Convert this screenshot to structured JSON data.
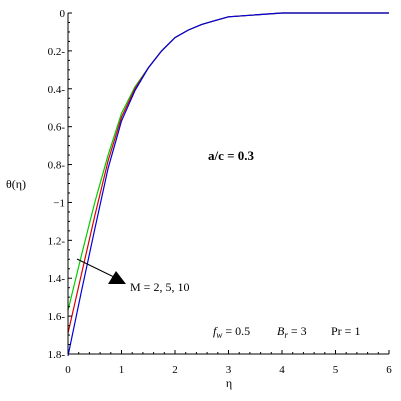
{
  "chart_data": {
    "type": "line",
    "title": "",
    "xlabel": "η",
    "ylabel": "θ(η)",
    "xlim": [
      0,
      6
    ],
    "ylim": [
      0,
      1.8
    ],
    "y_inverted": true,
    "x_ticks": [
      "0",
      "1",
      "2",
      "3",
      "4",
      "5",
      "6"
    ],
    "y_ticks": [
      "0",
      "0.2",
      "0.4",
      "0.6",
      "0.8",
      "1",
      "1.2",
      "1.4",
      "1.6",
      "1.8"
    ],
    "y_tick_display": [
      "0",
      "0.2-",
      "0.4-",
      "0.6-",
      "0.8-",
      "−1",
      "1.2-",
      "1.4-",
      "1.6-",
      "1.8-"
    ],
    "grid": false,
    "series": [
      {
        "color": "#00cc00",
        "points": [
          [
            0,
            1.57
          ],
          [
            0.25,
            1.28
          ],
          [
            0.5,
            1.0
          ],
          [
            0.75,
            0.75
          ],
          [
            1,
            0.53
          ],
          [
            1.25,
            0.39
          ],
          [
            1.5,
            0.29
          ],
          [
            1.75,
            0.2
          ],
          [
            2,
            0.13
          ],
          [
            2.25,
            0.09
          ],
          [
            2.5,
            0.06
          ],
          [
            2.75,
            0.04
          ],
          [
            3,
            0.02
          ],
          [
            3.5,
            0.01
          ],
          [
            4,
            0.0
          ],
          [
            6,
            0.0
          ]
        ]
      },
      {
        "color": "#dd0000",
        "points": [
          [
            0,
            1.69
          ],
          [
            0.25,
            1.38
          ],
          [
            0.5,
            1.07
          ],
          [
            0.75,
            0.78
          ],
          [
            1,
            0.55
          ],
          [
            1.25,
            0.4
          ],
          [
            1.5,
            0.29
          ],
          [
            1.75,
            0.2
          ],
          [
            2,
            0.13
          ],
          [
            2.25,
            0.09
          ],
          [
            2.5,
            0.06
          ],
          [
            2.75,
            0.04
          ],
          [
            3,
            0.02
          ],
          [
            3.5,
            0.01
          ],
          [
            4,
            0.0
          ],
          [
            6,
            0.0
          ]
        ]
      },
      {
        "color": "#0000dd",
        "points": [
          [
            0,
            1.81
          ],
          [
            0.25,
            1.47
          ],
          [
            0.5,
            1.14
          ],
          [
            0.75,
            0.82
          ],
          [
            1,
            0.57
          ],
          [
            1.25,
            0.41
          ],
          [
            1.5,
            0.29
          ],
          [
            1.75,
            0.2
          ],
          [
            2,
            0.13
          ],
          [
            2.25,
            0.09
          ],
          [
            2.5,
            0.06
          ],
          [
            2.75,
            0.04
          ],
          [
            3,
            0.02
          ],
          [
            3.5,
            0.01
          ],
          [
            4,
            0.0
          ],
          [
            6,
            0.0
          ]
        ]
      }
    ],
    "annotations": {
      "ratio": "a/c = 0.3",
      "m_label": "M = 2, 5, 10",
      "params": {
        "fw_symbol": "f",
        "fw_sub": "w",
        "fw_value": " = 0.5",
        "br_symbol": "B",
        "br_sub": "r",
        "br_value": " = 3",
        "pr": "Pr = 1"
      }
    }
  }
}
